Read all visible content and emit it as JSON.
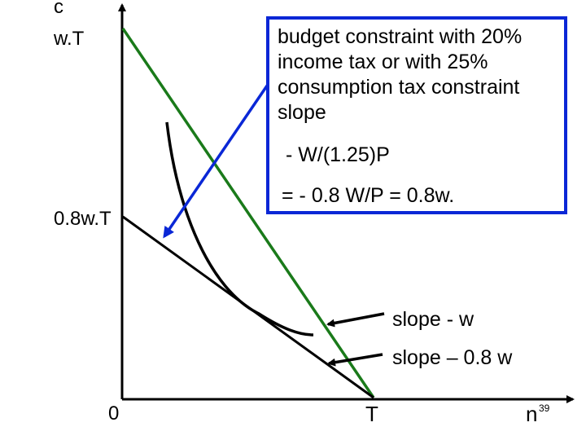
{
  "axes": {
    "y_label": "c",
    "y_top_label": "w.T",
    "y_mid_label": "0.8w.T",
    "origin_label": "0",
    "x_T_label": "T",
    "x_label": "n"
  },
  "slide_number": "39",
  "callout": {
    "line1": "budget constraint with  20%",
    "line2": "income tax or with 25%",
    "line3": "consumption tax constraint",
    "line4": "slope",
    "line5": " - W/(1.25)P",
    "line6": "= - 0.8 W/P = 0.8w."
  },
  "annotations": {
    "slope_w": "slope - w",
    "slope_08w": "slope – 0.8 w"
  },
  "colors": {
    "original_budget_line": "#1a7a1a",
    "taxed_budget_line": "#000000",
    "callout_border": "#0a27d6",
    "callout_arrow": "#0a27d6",
    "indifference_curve": "#000000"
  }
}
